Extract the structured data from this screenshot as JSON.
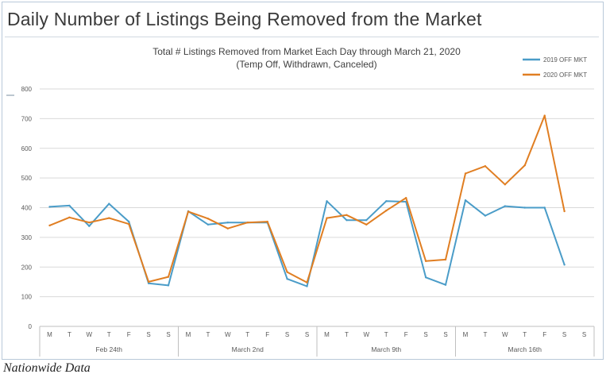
{
  "headline": "Daily Number of Listings Being Removed from the Market",
  "caption": "Nationwide Data",
  "colors": {
    "series2019": "#4a9cc8",
    "series2020": "#e07e22",
    "grid": "#d9d9d9",
    "axisText": "#595959"
  },
  "chart_data": {
    "type": "line",
    "title": "Total # Listings Removed from Market Each Day through March 21, 2020",
    "subtitle": "(Temp Off, Withdrawn, Canceled)",
    "ylim": [
      0,
      800
    ],
    "yticks": [
      0,
      100,
      200,
      300,
      400,
      500,
      600,
      700,
      800
    ],
    "legend_position": "top-right",
    "grid": true,
    "x_day_labels": [
      "M",
      "T",
      "W",
      "T",
      "F",
      "S",
      "S",
      "M",
      "T",
      "W",
      "T",
      "F",
      "S",
      "S",
      "M",
      "T",
      "W",
      "T",
      "F",
      "S",
      "S",
      "M",
      "T",
      "W",
      "T",
      "F",
      "S",
      "S"
    ],
    "week_groups": [
      {
        "label": "Feb 24th",
        "days": 7
      },
      {
        "label": "March 2nd",
        "days": 7
      },
      {
        "label": "March 9th",
        "days": 7
      },
      {
        "label": "March 16th",
        "days": 7
      }
    ],
    "series": [
      {
        "name": "2019 OFF MKT",
        "color": "#4a9cc8",
        "values": [
          403,
          407,
          338,
          413,
          353,
          145,
          138,
          388,
          343,
          350,
          350,
          350,
          160,
          135,
          422,
          358,
          358,
          422,
          420,
          165,
          140,
          425,
          373,
          405,
          400,
          400,
          208,
          null
        ]
      },
      {
        "name": "2020 OFF MKT",
        "color": "#e07e22",
        "values": [
          340,
          367,
          350,
          365,
          345,
          150,
          167,
          387,
          363,
          330,
          350,
          353,
          183,
          148,
          365,
          375,
          343,
          390,
          433,
          220,
          225,
          515,
          540,
          478,
          543,
          710,
          388,
          null
        ]
      }
    ]
  }
}
